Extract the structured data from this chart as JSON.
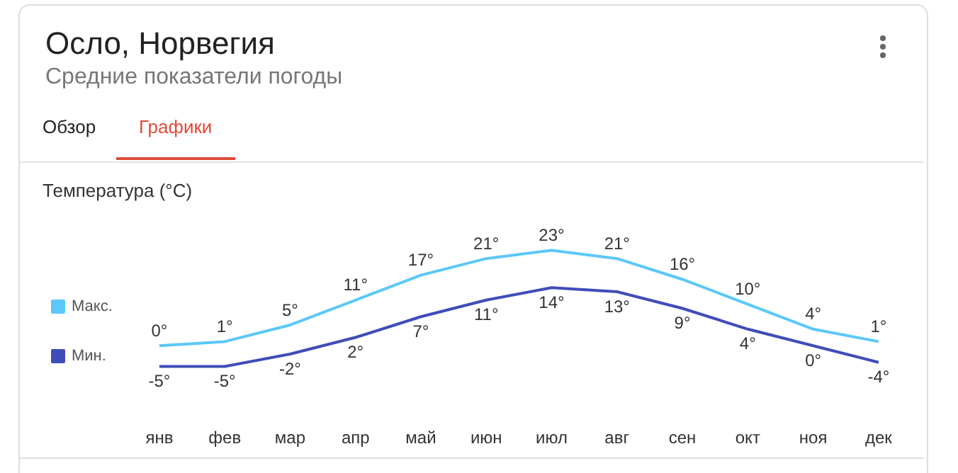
{
  "chart_data": {
    "type": "line",
    "title": "Осло, Норвегия",
    "subtitle": "Средние показатели погоды",
    "annotations": [
      "Обзор",
      "Графики",
      "Температура (°C)"
    ],
    "categories": [
      "янв",
      "фев",
      "мар",
      "апр",
      "май",
      "июн",
      "июл",
      "авг",
      "сен",
      "окт",
      "ноя",
      "дек"
    ],
    "series": [
      {
        "name": "Макс.",
        "color": "#5bc8f7",
        "values": [
          0,
          1,
          5,
          11,
          17,
          21,
          23,
          21,
          16,
          10,
          4,
          1
        ],
        "value_labels": [
          "0°",
          "1°",
          "5°",
          "11°",
          "17°",
          "21°",
          "23°",
          "21°",
          "16°",
          "10°",
          "4°",
          "1°"
        ]
      },
      {
        "name": "Мин.",
        "color": "#3f4db8",
        "values": [
          -5,
          -5,
          -2,
          2,
          7,
          11,
          14,
          13,
          9,
          4,
          0,
          -4
        ],
        "value_labels": [
          "-5°",
          "-5°",
          "-2°",
          "2°",
          "7°",
          "11°",
          "14°",
          "13°",
          "9°",
          "4°",
          "0°",
          "-4°"
        ]
      }
    ],
    "legend": "left",
    "marker": "none",
    "line_style": "solid"
  }
}
